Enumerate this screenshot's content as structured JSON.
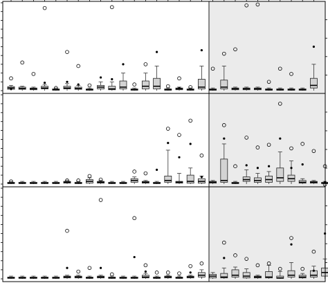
{
  "chart_data": [
    {
      "type": "box",
      "panel": "top",
      "title": "",
      "xlabel": "",
      "ylabel": "",
      "shaded_from_index": 19,
      "shade_color": "#ebebeb",
      "box_fill": "#d3d3d3",
      "ylim": [
        0,
        100
      ],
      "boxes": [
        {
          "min": 0,
          "q1": 1.5,
          "median": 3,
          "q3": 4.5,
          "max": 6,
          "outliers_open": [
            14
          ],
          "outliers_filled": [
            2
          ]
        },
        {
          "min": 0,
          "q1": 1.5,
          "median": 2.5,
          "q3": 4,
          "max": 5,
          "outliers_open": [
            32
          ],
          "outliers_filled": []
        },
        {
          "min": 0,
          "q1": 1,
          "median": 2,
          "q3": 3,
          "max": 4,
          "outliers_open": [
            19
          ],
          "outliers_filled": []
        },
        {
          "min": 0,
          "q1": 2,
          "median": 3,
          "q3": 5,
          "max": 7,
          "outliers_open": [
            94
          ],
          "outliers_filled": [
            9
          ]
        },
        {
          "min": 0,
          "q1": 0.5,
          "median": 1,
          "q3": 2,
          "max": 3,
          "outliers_open": [
            3
          ],
          "outliers_filled": []
        },
        {
          "min": 0,
          "q1": 2,
          "median": 3,
          "q3": 5,
          "max": 8,
          "outliers_open": [
            44
          ],
          "outliers_filled": [
            10
          ]
        },
        {
          "min": 0,
          "q1": 1.5,
          "median": 2.5,
          "q3": 4,
          "max": 6,
          "outliers_open": [
            28
          ],
          "outliers_filled": [
            7
          ]
        },
        {
          "min": 0,
          "q1": 0.5,
          "median": 1,
          "q3": 2,
          "max": 3,
          "outliers_open": [
            6
          ],
          "outliers_filled": []
        },
        {
          "min": 0,
          "q1": 2,
          "median": 4,
          "q3": 6,
          "max": 10,
          "outliers_open": [],
          "outliers_filled": [
            15
          ]
        },
        {
          "min": 0,
          "q1": 1,
          "median": 2,
          "q3": 5,
          "max": 10,
          "outliers_open": [
            95
          ],
          "outliers_filled": [
            13
          ]
        },
        {
          "min": 0,
          "q1": 2,
          "median": 4,
          "q3": 11,
          "max": 20,
          "outliers_open": [],
          "outliers_filled": [
            30
          ]
        },
        {
          "min": 0,
          "q1": 0.5,
          "median": 1,
          "q3": 2,
          "max": 3,
          "outliers_open": [
            7
          ],
          "outliers_filled": []
        },
        {
          "min": 0,
          "q1": 2,
          "median": 5,
          "q3": 11,
          "max": 20,
          "outliers_open": [
            30
          ],
          "outliers_filled": []
        },
        {
          "min": 0,
          "q1": 2,
          "median": 5,
          "q3": 14,
          "max": 28,
          "outliers_open": [],
          "outliers_filled": [
            44
          ]
        },
        {
          "min": 0,
          "q1": 0.5,
          "median": 1,
          "q3": 2,
          "max": 3,
          "outliers_open": [
            5
          ],
          "outliers_filled": []
        },
        {
          "min": 0,
          "q1": 1,
          "median": 2,
          "q3": 3,
          "max": 4,
          "outliers_open": [
            14
          ],
          "outliers_filled": [
            3
          ]
        },
        {
          "min": 0,
          "q1": 0.5,
          "median": 1,
          "q3": 2,
          "max": 3,
          "outliers_open": [
            4
          ],
          "outliers_filled": []
        },
        {
          "min": 0,
          "q1": 2,
          "median": 4,
          "q3": 13,
          "max": 28,
          "outliers_open": [],
          "outliers_filled": [
            46
          ]
        },
        {
          "min": 0,
          "q1": 0.5,
          "median": 1,
          "q3": 2,
          "max": 3,
          "outliers_open": [
            25
          ],
          "outliers_filled": []
        },
        {
          "min": 0,
          "q1": 2,
          "median": 4,
          "q3": 12,
          "max": 28,
          "outliers_open": [
            42
          ],
          "outliers_filled": []
        },
        {
          "min": 0,
          "q1": 1,
          "median": 2,
          "q3": 3,
          "max": 4,
          "outliers_open": [
            47
          ],
          "outliers_filled": []
        },
        {
          "min": 0,
          "q1": 1,
          "median": 2,
          "q3": 3,
          "max": 4,
          "outliers_open": [
            97
          ],
          "outliers_filled": []
        },
        {
          "min": 0,
          "q1": 1,
          "median": 2,
          "q3": 3,
          "max": 4,
          "outliers_open": [
            98
          ],
          "outliers_filled": []
        },
        {
          "min": 0,
          "q1": 0.5,
          "median": 1,
          "q3": 2,
          "max": 3,
          "outliers_open": [
            10
          ],
          "outliers_filled": []
        },
        {
          "min": 0,
          "q1": 0.5,
          "median": 1,
          "q3": 2,
          "max": 3,
          "outliers_open": [
            25
          ],
          "outliers_filled": []
        },
        {
          "min": 0,
          "q1": 0.5,
          "median": 1,
          "q3": 2,
          "max": 3,
          "outliers_open": [
            19
          ],
          "outliers_filled": []
        },
        {
          "min": 0,
          "q1": 0.5,
          "median": 1,
          "q3": 2,
          "max": 3,
          "outliers_open": [],
          "outliers_filled": []
        },
        {
          "min": 0,
          "q1": 3,
          "median": 6,
          "q3": 14,
          "max": 30,
          "outliers_open": [],
          "outliers_filled": [
            50
          ]
        }
      ]
    },
    {
      "type": "box",
      "panel": "middle",
      "title": "",
      "xlabel": "",
      "ylabel": "",
      "shaded_from_index": 19,
      "shade_color": "#ebebeb",
      "box_fill": "#d3d3d3",
      "ylim": [
        0,
        100
      ],
      "boxes": [
        {
          "min": 0,
          "q1": 0.5,
          "median": 1,
          "q3": 2,
          "max": 3,
          "outliers_open": [
            3
          ],
          "outliers_filled": []
        },
        {
          "min": 0,
          "q1": 0.5,
          "median": 1,
          "q3": 2,
          "max": 3,
          "outliers_open": [],
          "outliers_filled": []
        },
        {
          "min": 0,
          "q1": 0.5,
          "median": 1,
          "q3": 2,
          "max": 3,
          "outliers_open": [],
          "outliers_filled": []
        },
        {
          "min": 0,
          "q1": 0.5,
          "median": 1,
          "q3": 2,
          "max": 3,
          "outliers_open": [],
          "outliers_filled": []
        },
        {
          "min": 0,
          "q1": 0.5,
          "median": 1,
          "q3": 2,
          "max": 3,
          "outliers_open": [],
          "outliers_filled": []
        },
        {
          "min": 0,
          "q1": 1,
          "median": 2,
          "q3": 3,
          "max": 4,
          "outliers_open": [
            4
          ],
          "outliers_filled": []
        },
        {
          "min": 0,
          "q1": 0.5,
          "median": 1,
          "q3": 2,
          "max": 3,
          "outliers_open": [
            4
          ],
          "outliers_filled": []
        },
        {
          "min": 0,
          "q1": 1,
          "median": 3,
          "q3": 5,
          "max": 7,
          "outliers_open": [
            9
          ],
          "outliers_filled": []
        },
        {
          "min": 0,
          "q1": 1,
          "median": 2,
          "q3": 3,
          "max": 4,
          "outliers_open": [
            5
          ],
          "outliers_filled": []
        },
        {
          "min": 0,
          "q1": 0.5,
          "median": 1,
          "q3": 2,
          "max": 3,
          "outliers_open": [],
          "outliers_filled": []
        },
        {
          "min": 0,
          "q1": 0.5,
          "median": 1,
          "q3": 2,
          "max": 3,
          "outliers_open": [],
          "outliers_filled": []
        },
        {
          "min": 0,
          "q1": 2,
          "median": 4,
          "q3": 6,
          "max": 8,
          "outliers_open": [
            14
          ],
          "outliers_filled": []
        },
        {
          "min": 0,
          "q1": 1,
          "median": 2,
          "q3": 3,
          "max": 4,
          "outliers_open": [
            12
          ],
          "outliers_filled": []
        },
        {
          "min": 0,
          "q1": 0.5,
          "median": 1,
          "q3": 2,
          "max": 3,
          "outliers_open": [],
          "outliers_filled": [
            16
          ]
        },
        {
          "min": 0,
          "q1": 2,
          "median": 4,
          "q3": 9,
          "max": 38,
          "outliers_open": [
            62
          ],
          "outliers_filled": [
            46
          ]
        },
        {
          "min": 0,
          "q1": 1,
          "median": 2,
          "q3": 3,
          "max": 12,
          "outliers_open": [
            55
          ],
          "outliers_filled": [
            30
          ]
        },
        {
          "min": 0,
          "q1": 1,
          "median": 3,
          "q3": 10,
          "max": 18,
          "outliers_open": [
            71
          ],
          "outliers_filled": [
            45
          ]
        },
        {
          "min": 0,
          "q1": 1,
          "median": 3,
          "q3": 6,
          "max": 9,
          "outliers_open": [
            32
          ],
          "outliers_filled": [
            8
          ]
        },
        {
          "min": 0,
          "q1": 1,
          "median": 2,
          "q3": 3,
          "max": 4,
          "outliers_open": [],
          "outliers_filled": []
        },
        {
          "min": 0,
          "q1": 2,
          "median": 4,
          "q3": 28,
          "max": 45,
          "outliers_open": [
            66
          ],
          "outliers_filled": [
            51
          ]
        },
        {
          "min": 0,
          "q1": 0.5,
          "median": 1,
          "q3": 2,
          "max": 3,
          "outliers_open": [
            20
          ],
          "outliers_filled": []
        },
        {
          "min": 0,
          "q1": 3,
          "median": 5,
          "q3": 8,
          "max": 16,
          "outliers_open": [
            52
          ],
          "outliers_filled": [
            21
          ]
        },
        {
          "min": 0,
          "q1": 2,
          "median": 4,
          "q3": 7,
          "max": 12,
          "outliers_open": [
            41
          ],
          "outliers_filled": [
            18
          ]
        },
        {
          "min": 0,
          "q1": 2,
          "median": 5,
          "q3": 9,
          "max": 14,
          "outliers_open": [
            44
          ],
          "outliers_filled": [
            20
          ]
        },
        {
          "min": 0,
          "q1": 3,
          "median": 7,
          "q3": 18,
          "max": 36,
          "outliers_open": [
            90
          ],
          "outliers_filled": [
            51
          ]
        },
        {
          "min": 0,
          "q1": 3,
          "median": 6,
          "q3": 10,
          "max": 26,
          "outliers_open": [
            40
          ],
          "outliers_filled": [
            18
          ]
        },
        {
          "min": 0,
          "q1": 1,
          "median": 2,
          "q3": 4,
          "max": 6,
          "outliers_open": [
            45
          ],
          "outliers_filled": [
            22
          ]
        },
        {
          "min": 0,
          "q1": 1,
          "median": 2,
          "q3": 3,
          "max": 4,
          "outliers_open": [
            37
          ],
          "outliers_filled": []
        },
        {
          "min": 0,
          "q1": 0.5,
          "median": 1,
          "q3": 2,
          "max": 3,
          "outliers_open": [
            20
          ],
          "outliers_filled": [
            2
          ]
        }
      ]
    },
    {
      "type": "box",
      "panel": "bottom",
      "title": "",
      "xlabel": "",
      "ylabel": "",
      "shaded_from_index": 19,
      "shade_color": "#ebebeb",
      "box_fill": "#d3d3d3",
      "ylim": [
        0,
        100
      ],
      "boxes": [
        {
          "min": 0,
          "q1": 0.5,
          "median": 1,
          "q3": 2,
          "max": 3,
          "outliers_open": [],
          "outliers_filled": []
        },
        {
          "min": 0,
          "q1": 0.5,
          "median": 1,
          "q3": 2,
          "max": 3,
          "outliers_open": [],
          "outliers_filled": []
        },
        {
          "min": 0,
          "q1": 0.5,
          "median": 1,
          "q3": 2,
          "max": 3,
          "outliers_open": [],
          "outliers_filled": []
        },
        {
          "min": 0,
          "q1": 0.5,
          "median": 1,
          "q3": 2,
          "max": 3,
          "outliers_open": [],
          "outliers_filled": []
        },
        {
          "min": 0,
          "q1": 0.5,
          "median": 1,
          "q3": 2,
          "max": 3,
          "outliers_open": [],
          "outliers_filled": []
        },
        {
          "min": 0,
          "q1": 1,
          "median": 2,
          "q3": 3,
          "max": 4,
          "outliers_open": [
            53
          ],
          "outliers_filled": [
            12
          ]
        },
        {
          "min": 0,
          "q1": 1,
          "median": 2,
          "q3": 3,
          "max": 4,
          "outliers_open": [
            8
          ],
          "outliers_filled": []
        },
        {
          "min": 0,
          "q1": 0.5,
          "median": 1,
          "q3": 2,
          "max": 3,
          "outliers_open": [
            12
          ],
          "outliers_filled": []
        },
        {
          "min": 0,
          "q1": 1,
          "median": 2,
          "q3": 3,
          "max": 4,
          "outliers_open": [
            87
          ],
          "outliers_filled": [
            12
          ]
        },
        {
          "min": 0,
          "q1": 0.5,
          "median": 1,
          "q3": 2,
          "max": 3,
          "outliers_open": [
            5
          ],
          "outliers_filled": []
        },
        {
          "min": 0,
          "q1": 0.5,
          "median": 1,
          "q3": 2,
          "max": 3,
          "outliers_open": [],
          "outliers_filled": []
        },
        {
          "min": 0,
          "q1": 0.5,
          "median": 1,
          "q3": 2,
          "max": 3,
          "outliers_open": [
            67
          ],
          "outliers_filled": [
            24
          ]
        },
        {
          "min": 0,
          "q1": 1,
          "median": 2,
          "q3": 4,
          "max": 6,
          "outliers_open": [
            15
          ],
          "outliers_filled": [
            8
          ]
        },
        {
          "min": 0,
          "q1": 0.5,
          "median": 1,
          "q3": 2,
          "max": 3,
          "outliers_open": [
            7
          ],
          "outliers_filled": []
        },
        {
          "min": 0,
          "q1": 1,
          "median": 2,
          "q3": 3,
          "max": 4,
          "outliers_open": [
            7
          ],
          "outliers_filled": []
        },
        {
          "min": 0,
          "q1": 0.5,
          "median": 1,
          "q3": 2,
          "max": 3,
          "outliers_open": [
            6
          ],
          "outliers_filled": []
        },
        {
          "min": 0,
          "q1": 1,
          "median": 2,
          "q3": 3,
          "max": 4,
          "outliers_open": [
            14
          ],
          "outliers_filled": [
            7
          ]
        },
        {
          "min": 0,
          "q1": 2,
          "median": 4,
          "q3": 7,
          "max": 10,
          "outliers_open": [
            17
          ],
          "outliers_filled": []
        },
        {
          "min": 0,
          "q1": 1,
          "median": 3,
          "q3": 5,
          "max": 7,
          "outliers_open": [],
          "outliers_filled": []
        },
        {
          "min": 0,
          "q1": 1,
          "median": 2,
          "q3": 6,
          "max": 12,
          "outliers_open": [
            40
          ],
          "outliers_filled": [
            23
          ]
        },
        {
          "min": 0,
          "q1": 2,
          "median": 4,
          "q3": 10,
          "max": 13,
          "outliers_open": [
            26
          ],
          "outliers_filled": []
        },
        {
          "min": 0,
          "q1": 1,
          "median": 3,
          "q3": 7,
          "max": 11,
          "outliers_open": [
            22
          ],
          "outliers_filled": []
        },
        {
          "min": 0,
          "q1": 1,
          "median": 2,
          "q3": 3,
          "max": 4,
          "outliers_open": [
            15
          ],
          "outliers_filled": []
        },
        {
          "min": 0,
          "q1": 1,
          "median": 2,
          "q3": 8,
          "max": 15,
          "outliers_open": [
            17
          ],
          "outliers_filled": []
        },
        {
          "min": 0,
          "q1": 0.5,
          "median": 1,
          "q3": 3,
          "max": 8,
          "outliers_open": [
            11
          ],
          "outliers_filled": []
        },
        {
          "min": 0,
          "q1": 2,
          "median": 4,
          "q3": 9,
          "max": 18,
          "outliers_open": [
            45
          ],
          "outliers_filled": [
            38
          ]
        },
        {
          "min": 0,
          "q1": 1,
          "median": 2,
          "q3": 4,
          "max": 6,
          "outliers_open": [
            11
          ],
          "outliers_filled": []
        },
        {
          "min": 0,
          "q1": 2,
          "median": 4,
          "q3": 9,
          "max": 14,
          "outliers_open": [
            30
          ],
          "outliers_filled": [
            9
          ]
        },
        {
          "min": 0,
          "q1": 3,
          "median": 7,
          "q3": 12,
          "max": 22,
          "outliers_open": [
            104
          ],
          "outliers_filled": [
            50
          ]
        }
      ]
    }
  ]
}
